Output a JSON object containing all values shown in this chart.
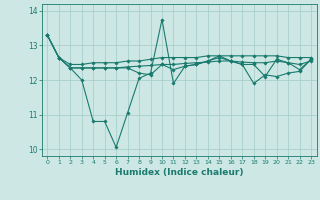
{
  "xlabel": "Humidex (Indice chaleur)",
  "ylabel": "",
  "xlim": [
    -0.5,
    23.5
  ],
  "ylim": [
    9.8,
    14.2
  ],
  "yticks": [
    10,
    11,
    12,
    13,
    14
  ],
  "xticks": [
    0,
    1,
    2,
    3,
    4,
    5,
    6,
    7,
    8,
    9,
    10,
    11,
    12,
    13,
    14,
    15,
    16,
    17,
    18,
    19,
    20,
    21,
    22,
    23
  ],
  "background_color": "#cde8e4",
  "grid_color": "#aacfca",
  "line_color": "#1a7a6e",
  "lines": [
    {
      "x": [
        0,
        1,
        2,
        3,
        4,
        5,
        6,
        7,
        8,
        9,
        10,
        11,
        12,
        13,
        14,
        15,
        16,
        17,
        18,
        19,
        20,
        21,
        22,
        23
      ],
      "y": [
        13.3,
        12.65,
        12.45,
        12.45,
        12.5,
        12.5,
        12.5,
        12.55,
        12.55,
        12.6,
        12.65,
        12.65,
        12.65,
        12.65,
        12.7,
        12.7,
        12.7,
        12.7,
        12.7,
        12.7,
        12.7,
        12.65,
        12.65,
        12.65
      ]
    },
    {
      "x": [
        0,
        1,
        2,
        3,
        4,
        5,
        6,
        7,
        8,
        9,
        10,
        11,
        12,
        13,
        14,
        15,
        16,
        17,
        18,
        19,
        20,
        21,
        22,
        23
      ],
      "y": [
        13.3,
        12.65,
        12.35,
        12.35,
        12.35,
        12.35,
        12.35,
        12.38,
        12.4,
        12.42,
        12.45,
        12.45,
        12.48,
        12.5,
        12.52,
        12.55,
        12.55,
        12.52,
        12.5,
        12.5,
        12.55,
        12.5,
        12.45,
        12.55
      ]
    },
    {
      "x": [
        0,
        1,
        2,
        3,
        4,
        5,
        6,
        7,
        8,
        9,
        10,
        11,
        12,
        13,
        14,
        15,
        16,
        17,
        18,
        19,
        20,
        21,
        22,
        23
      ],
      "y": [
        13.3,
        12.65,
        12.35,
        12.0,
        10.8,
        10.8,
        10.05,
        11.05,
        12.05,
        12.2,
        13.75,
        11.9,
        12.4,
        12.45,
        12.55,
        12.7,
        12.55,
        12.45,
        11.9,
        12.15,
        12.1,
        12.2,
        12.25,
        12.6
      ]
    },
    {
      "x": [
        0,
        1,
        2,
        3,
        4,
        5,
        6,
        7,
        8,
        9,
        10,
        11,
        12,
        13,
        14,
        15,
        16,
        17,
        18,
        19,
        20,
        21,
        22,
        23
      ],
      "y": [
        13.3,
        12.65,
        12.35,
        12.35,
        12.35,
        12.35,
        12.35,
        12.35,
        12.2,
        12.15,
        12.45,
        12.3,
        12.4,
        12.45,
        12.55,
        12.65,
        12.55,
        12.45,
        12.45,
        12.1,
        12.6,
        12.5,
        12.3,
        12.6
      ]
    }
  ]
}
